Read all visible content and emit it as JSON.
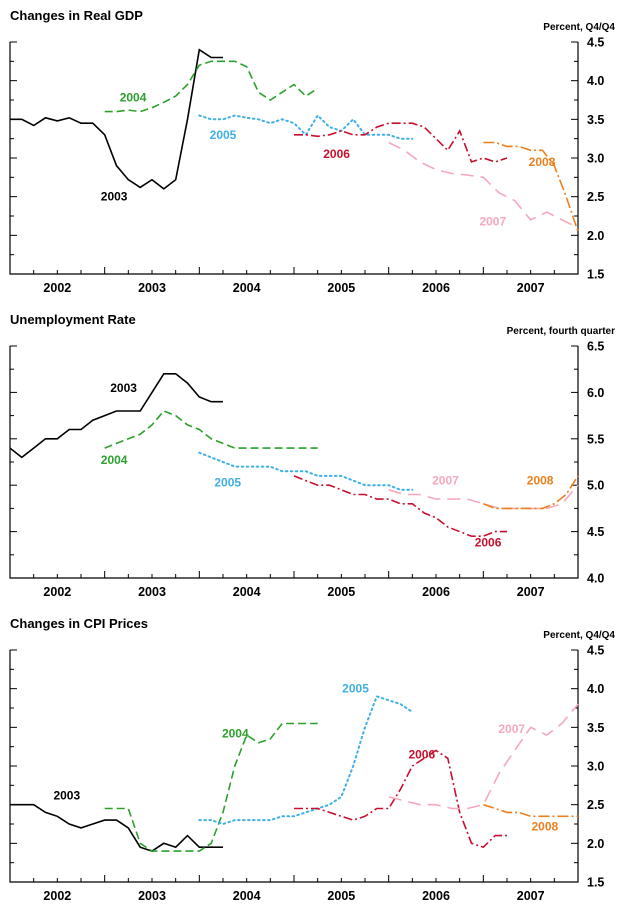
{
  "page": {
    "background": "#ffffff"
  },
  "chart_data": [
    {
      "type": "line",
      "title": "Changes in Real GDP",
      "unit_label": "Percent, Q4/Q4",
      "xlim": [
        2002,
        2008
      ],
      "ylim": [
        1.5,
        4.5
      ],
      "ytick_step": 0.5,
      "xtick_minor_step": 0.25,
      "grid": false,
      "legend_position": "inline-labels",
      "xtick_labels": [
        {
          "label": "2002",
          "x": 2002.5
        },
        {
          "label": "2003",
          "x": 2003.5
        },
        {
          "label": "2004",
          "x": 2004.5
        },
        {
          "label": "2005",
          "x": 2005.5
        },
        {
          "label": "2006",
          "x": 2006.5
        },
        {
          "label": "2007",
          "x": 2007.5
        }
      ],
      "series": [
        {
          "name": "2003",
          "color": "#000000",
          "style": "solid",
          "label_pos": [
            2003.1,
            2.5
          ],
          "x": [
            2002.0,
            2002.125,
            2002.25,
            2002.375,
            2002.5,
            2002.625,
            2002.75,
            2002.875,
            2003.0,
            2003.125,
            2003.25,
            2003.375,
            2003.5,
            2003.625,
            2003.75,
            2003.875,
            2004.0,
            2004.125,
            2004.25
          ],
          "y": [
            3.5,
            3.5,
            3.42,
            3.52,
            3.48,
            3.52,
            3.45,
            3.45,
            3.3,
            2.9,
            2.72,
            2.62,
            2.72,
            2.6,
            2.72,
            3.5,
            4.4,
            4.3,
            4.3
          ]
        },
        {
          "name": "2004",
          "color": "#2ca02c",
          "style": "dashed",
          "label_pos": [
            2003.3,
            3.78
          ],
          "x": [
            2003.0,
            2003.125,
            2003.25,
            2003.375,
            2003.5,
            2003.625,
            2003.75,
            2003.875,
            2004.0,
            2004.125,
            2004.25,
            2004.375,
            2004.5,
            2004.625,
            2004.75,
            2004.875,
            2005.0,
            2005.125,
            2005.25
          ],
          "y": [
            3.6,
            3.6,
            3.62,
            3.6,
            3.65,
            3.72,
            3.8,
            3.95,
            4.2,
            4.25,
            4.25,
            4.25,
            4.18,
            3.85,
            3.75,
            3.85,
            3.95,
            3.8,
            3.9
          ]
        },
        {
          "name": "2005",
          "color": "#3fb0e5",
          "style": "dotted",
          "label_pos": [
            2004.25,
            3.3
          ],
          "x": [
            2004.0,
            2004.125,
            2004.25,
            2004.375,
            2004.5,
            2004.625,
            2004.75,
            2004.875,
            2005.0,
            2005.125,
            2005.25,
            2005.375,
            2005.5,
            2005.625,
            2005.75,
            2005.875,
            2006.0,
            2006.125,
            2006.25
          ],
          "y": [
            3.55,
            3.5,
            3.5,
            3.55,
            3.52,
            3.5,
            3.45,
            3.5,
            3.45,
            3.3,
            3.55,
            3.4,
            3.35,
            3.5,
            3.3,
            3.3,
            3.3,
            3.25,
            3.25
          ]
        },
        {
          "name": "2006",
          "color": "#c8102e",
          "style": "dashdot",
          "label_pos": [
            2005.45,
            3.05
          ],
          "x": [
            2005.0,
            2005.125,
            2005.25,
            2005.375,
            2005.5,
            2005.625,
            2005.75,
            2005.875,
            2006.0,
            2006.125,
            2006.25,
            2006.375,
            2006.5,
            2006.625,
            2006.75,
            2006.875,
            2007.0,
            2007.125,
            2007.25
          ],
          "y": [
            3.3,
            3.3,
            3.28,
            3.3,
            3.35,
            3.3,
            3.3,
            3.4,
            3.45,
            3.45,
            3.45,
            3.4,
            3.25,
            3.1,
            3.35,
            2.95,
            3.0,
            2.95,
            3.0
          ]
        },
        {
          "name": "2007",
          "color": "#f6a8bc",
          "style": "longdash",
          "label_pos": [
            2007.1,
            2.18
          ],
          "x": [
            2006.0,
            2006.165,
            2006.33,
            2006.5,
            2006.67,
            2006.83,
            2007.0,
            2007.165,
            2007.33,
            2007.5,
            2007.67,
            2007.83,
            2008.0
          ],
          "y": [
            3.2,
            3.1,
            2.95,
            2.85,
            2.8,
            2.78,
            2.75,
            2.55,
            2.45,
            2.2,
            2.3,
            2.2,
            2.1
          ]
        },
        {
          "name": "2008",
          "color": "#ee7f1d",
          "style": "longdashdot",
          "label_pos": [
            2007.62,
            2.95
          ],
          "x": [
            2007.0,
            2007.125,
            2007.25,
            2007.375,
            2007.5,
            2007.625,
            2007.75,
            2007.875,
            2008.0
          ],
          "y": [
            3.2,
            3.2,
            3.15,
            3.15,
            3.1,
            3.1,
            2.9,
            2.5,
            2.05
          ]
        }
      ]
    },
    {
      "type": "line",
      "title": "Unemployment Rate",
      "unit_label": "Percent, fourth quarter",
      "xlim": [
        2002,
        2008
      ],
      "ylim": [
        4.0,
        6.5
      ],
      "ytick_step": 0.5,
      "xtick_minor_step": 0.25,
      "grid": false,
      "legend_position": "inline-labels",
      "xtick_labels": [
        {
          "label": "2002",
          "x": 2002.5
        },
        {
          "label": "2003",
          "x": 2003.5
        },
        {
          "label": "2004",
          "x": 2004.5
        },
        {
          "label": "2005",
          "x": 2005.5
        },
        {
          "label": "2006",
          "x": 2006.5
        },
        {
          "label": "2007",
          "x": 2007.5
        }
      ],
      "series": [
        {
          "name": "2003",
          "color": "#000000",
          "style": "solid",
          "label_pos": [
            2003.2,
            6.05
          ],
          "x": [
            2002.0,
            2002.125,
            2002.25,
            2002.375,
            2002.5,
            2002.625,
            2002.75,
            2002.875,
            2003.0,
            2003.125,
            2003.25,
            2003.375,
            2003.5,
            2003.625,
            2003.75,
            2003.875,
            2004.0,
            2004.125,
            2004.25
          ],
          "y": [
            5.4,
            5.3,
            5.4,
            5.5,
            5.5,
            5.6,
            5.6,
            5.7,
            5.75,
            5.8,
            5.8,
            5.8,
            6.0,
            6.2,
            6.2,
            6.1,
            5.95,
            5.9,
            5.9
          ]
        },
        {
          "name": "2004",
          "color": "#2ca02c",
          "style": "dashed",
          "label_pos": [
            2003.1,
            5.27
          ],
          "x": [
            2003.0,
            2003.125,
            2003.25,
            2003.375,
            2003.5,
            2003.625,
            2003.75,
            2003.875,
            2004.0,
            2004.125,
            2004.25,
            2004.375,
            2004.5,
            2004.625,
            2004.75,
            2004.875,
            2005.0,
            2005.125,
            2005.25
          ],
          "y": [
            5.4,
            5.45,
            5.5,
            5.55,
            5.65,
            5.8,
            5.75,
            5.65,
            5.6,
            5.5,
            5.45,
            5.4,
            5.4,
            5.4,
            5.4,
            5.4,
            5.4,
            5.4,
            5.4
          ]
        },
        {
          "name": "2005",
          "color": "#3fb0e5",
          "style": "dotted",
          "label_pos": [
            2004.3,
            5.03
          ],
          "x": [
            2004.0,
            2004.125,
            2004.25,
            2004.375,
            2004.5,
            2004.625,
            2004.75,
            2004.875,
            2005.0,
            2005.125,
            2005.25,
            2005.375,
            2005.5,
            2005.625,
            2005.75,
            2005.875,
            2006.0,
            2006.125,
            2006.25
          ],
          "y": [
            5.35,
            5.3,
            5.25,
            5.2,
            5.2,
            5.2,
            5.2,
            5.15,
            5.15,
            5.15,
            5.1,
            5.1,
            5.1,
            5.05,
            5.0,
            5.0,
            5.0,
            4.95,
            4.95
          ]
        },
        {
          "name": "2006",
          "color": "#c8102e",
          "style": "dashdot",
          "label_pos": [
            2007.05,
            4.38
          ],
          "x": [
            2005.0,
            2005.125,
            2005.25,
            2005.375,
            2005.5,
            2005.625,
            2005.75,
            2005.875,
            2006.0,
            2006.125,
            2006.25,
            2006.375,
            2006.5,
            2006.625,
            2006.75,
            2006.875,
            2007.0,
            2007.125,
            2007.25
          ],
          "y": [
            5.1,
            5.05,
            5.0,
            5.0,
            4.95,
            4.9,
            4.9,
            4.85,
            4.85,
            4.8,
            4.8,
            4.7,
            4.65,
            4.55,
            4.5,
            4.45,
            4.45,
            4.5,
            4.5
          ]
        },
        {
          "name": "2007",
          "color": "#f6a8bc",
          "style": "longdash",
          "label_pos": [
            2006.6,
            5.05
          ],
          "x": [
            2006.0,
            2006.165,
            2006.33,
            2006.5,
            2006.67,
            2006.83,
            2007.0,
            2007.165,
            2007.33,
            2007.5,
            2007.67,
            2007.83,
            2008.0
          ],
          "y": [
            4.95,
            4.9,
            4.9,
            4.85,
            4.85,
            4.85,
            4.8,
            4.75,
            4.75,
            4.75,
            4.75,
            4.8,
            5.0
          ]
        },
        {
          "name": "2008",
          "color": "#ee7f1d",
          "style": "longdashdot",
          "label_pos": [
            2007.6,
            5.05
          ],
          "x": [
            2007.0,
            2007.125,
            2007.25,
            2007.375,
            2007.5,
            2007.625,
            2007.75,
            2007.875,
            2008.0
          ],
          "y": [
            4.8,
            4.75,
            4.75,
            4.75,
            4.75,
            4.75,
            4.8,
            4.9,
            5.1
          ]
        }
      ]
    },
    {
      "type": "line",
      "title": "Changes in CPI Prices",
      "unit_label": "Percent, Q4/Q4",
      "xlim": [
        2002,
        2008
      ],
      "ylim": [
        1.5,
        4.5
      ],
      "ytick_step": 0.5,
      "xtick_minor_step": 0.25,
      "grid": false,
      "legend_position": "inline-labels",
      "xtick_labels": [
        {
          "label": "2002",
          "x": 2002.5
        },
        {
          "label": "2003",
          "x": 2003.5
        },
        {
          "label": "2004",
          "x": 2004.5
        },
        {
          "label": "2005",
          "x": 2005.5
        },
        {
          "label": "2006",
          "x": 2006.5
        },
        {
          "label": "2007",
          "x": 2007.5
        }
      ],
      "series": [
        {
          "name": "2003",
          "color": "#000000",
          "style": "solid",
          "label_pos": [
            2002.6,
            2.62
          ],
          "x": [
            2002.0,
            2002.125,
            2002.25,
            2002.375,
            2002.5,
            2002.625,
            2002.75,
            2002.875,
            2003.0,
            2003.125,
            2003.25,
            2003.375,
            2003.5,
            2003.625,
            2003.75,
            2003.875,
            2004.0,
            2004.125,
            2004.25
          ],
          "y": [
            2.5,
            2.5,
            2.5,
            2.4,
            2.35,
            2.25,
            2.2,
            2.25,
            2.3,
            2.3,
            2.2,
            1.95,
            1.9,
            2.0,
            1.95,
            2.1,
            1.95,
            1.95,
            1.95
          ]
        },
        {
          "name": "2004",
          "color": "#2ca02c",
          "style": "dashed",
          "label_pos": [
            2004.38,
            3.42
          ],
          "x": [
            2003.0,
            2003.125,
            2003.25,
            2003.375,
            2003.5,
            2003.625,
            2003.75,
            2003.875,
            2004.0,
            2004.125,
            2004.25,
            2004.375,
            2004.5,
            2004.625,
            2004.75,
            2004.875,
            2005.0,
            2005.125,
            2005.25
          ],
          "y": [
            2.45,
            2.45,
            2.45,
            2.0,
            1.9,
            1.9,
            1.9,
            1.9,
            1.9,
            2.0,
            2.4,
            3.0,
            3.4,
            3.3,
            3.35,
            3.55,
            3.55,
            3.55,
            3.55
          ]
        },
        {
          "name": "2005",
          "color": "#3fb0e5",
          "style": "dotted",
          "label_pos": [
            2005.65,
            4.0
          ],
          "x": [
            2004.0,
            2004.125,
            2004.25,
            2004.375,
            2004.5,
            2004.625,
            2004.75,
            2004.875,
            2005.0,
            2005.125,
            2005.25,
            2005.375,
            2005.5,
            2005.625,
            2005.75,
            2005.875,
            2006.0,
            2006.125,
            2006.25
          ],
          "y": [
            2.3,
            2.3,
            2.25,
            2.3,
            2.3,
            2.3,
            2.3,
            2.35,
            2.35,
            2.4,
            2.45,
            2.5,
            2.6,
            3.0,
            3.5,
            3.9,
            3.85,
            3.8,
            3.7
          ]
        },
        {
          "name": "2006",
          "color": "#c8102e",
          "style": "dashdot",
          "label_pos": [
            2006.35,
            3.15
          ],
          "x": [
            2005.0,
            2005.125,
            2005.25,
            2005.375,
            2005.5,
            2005.625,
            2005.75,
            2005.875,
            2006.0,
            2006.125,
            2006.25,
            2006.375,
            2006.5,
            2006.625,
            2006.75,
            2006.875,
            2007.0,
            2007.125,
            2007.25
          ],
          "y": [
            2.45,
            2.45,
            2.45,
            2.4,
            2.35,
            2.3,
            2.35,
            2.45,
            2.45,
            2.7,
            3.0,
            3.1,
            3.2,
            3.1,
            2.4,
            2.0,
            1.95,
            2.1,
            2.1
          ]
        },
        {
          "name": "2007",
          "color": "#f6a8bc",
          "style": "longdash",
          "label_pos": [
            2007.3,
            3.48
          ],
          "x": [
            2006.0,
            2006.165,
            2006.33,
            2006.5,
            2006.67,
            2006.83,
            2007.0,
            2007.165,
            2007.33,
            2007.5,
            2007.67,
            2007.83,
            2008.0
          ],
          "y": [
            2.6,
            2.55,
            2.5,
            2.5,
            2.45,
            2.45,
            2.5,
            2.9,
            3.2,
            3.5,
            3.4,
            3.55,
            3.8
          ]
        },
        {
          "name": "2008",
          "color": "#ee7f1d",
          "style": "longdashdot",
          "label_pos": [
            2007.65,
            2.22
          ],
          "x": [
            2007.0,
            2007.125,
            2007.25,
            2007.375,
            2007.5,
            2007.625,
            2007.75,
            2007.875,
            2008.0
          ],
          "y": [
            2.5,
            2.45,
            2.4,
            2.4,
            2.35,
            2.35,
            2.35,
            2.35,
            2.35
          ]
        }
      ]
    }
  ]
}
